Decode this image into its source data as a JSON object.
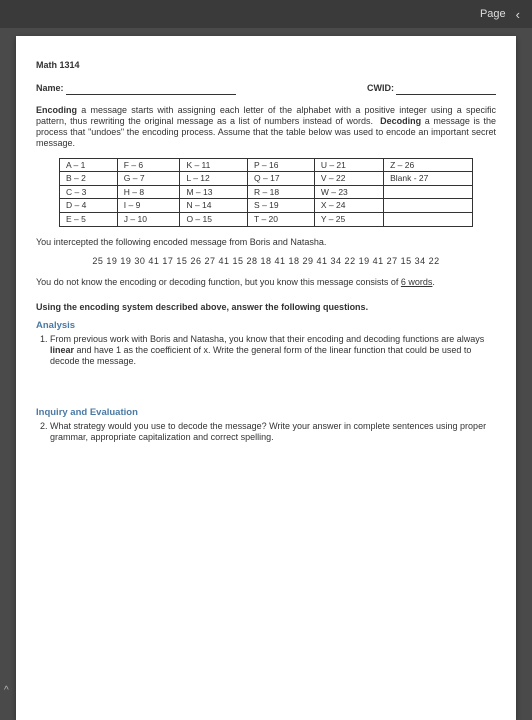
{
  "topbar": {
    "page_label": "Page",
    "chevron": "‹"
  },
  "doc": {
    "course": "Math 1314",
    "name_label": "Name:",
    "cwid_label": "CWID:",
    "intro": "a message starts with assigning each letter of the alphabet with a positive integer using a specific pattern, thus rewriting the original message as a list of numbers instead of words.",
    "intro2": "a message is the process that \"undoes\" the encoding process.  Assume that the table below was used to encode an important secret message.",
    "bold_encoding": "Encoding",
    "bold_decoding": "Decoding",
    "table": {
      "rows": [
        [
          "A – 1",
          "F – 6",
          "K – 11",
          "P – 16",
          "U – 21",
          "Z – 26"
        ],
        [
          "B – 2",
          "G – 7",
          "L – 12",
          "Q – 17",
          "V – 22",
          "Blank - 27"
        ],
        [
          "C – 3",
          "H – 8",
          "M – 13",
          "R – 18",
          "W – 23",
          ""
        ],
        [
          "D – 4",
          "I – 9",
          "N – 14",
          "S – 19",
          "X – 24",
          ""
        ],
        [
          "E – 5",
          "J – 10",
          "O – 15",
          "T – 20",
          "Y – 25",
          ""
        ]
      ]
    },
    "intercept": "You intercepted the following encoded message from Boris and Natasha.",
    "encoded_msg": "25  19  19  30  41  17  15  26  27  41  15  28  18  41  18  29  41  34  22  19  41  27  15  34  22",
    "consists1": "You do not know the encoding or decoding function, but you know this message consists of ",
    "consists_underline": "6 words",
    "consists2": ".",
    "using_h": "Using the encoding system described above, answer the following questions.",
    "analysis_h": "Analysis",
    "q1": "From previous work with Boris and Natasha, you know that their encoding and decoding functions are always linear and have 1 as the coefficient of x. Write the general form of the linear function that could be used to decode the message.",
    "q1_bold": "linear",
    "inquiry_h": "Inquiry and Evaluation",
    "q2": "What strategy would you use to decode the message? Write your answer in complete sentences using proper grammar, appropriate capitalization and correct spelling."
  },
  "corner": "^"
}
